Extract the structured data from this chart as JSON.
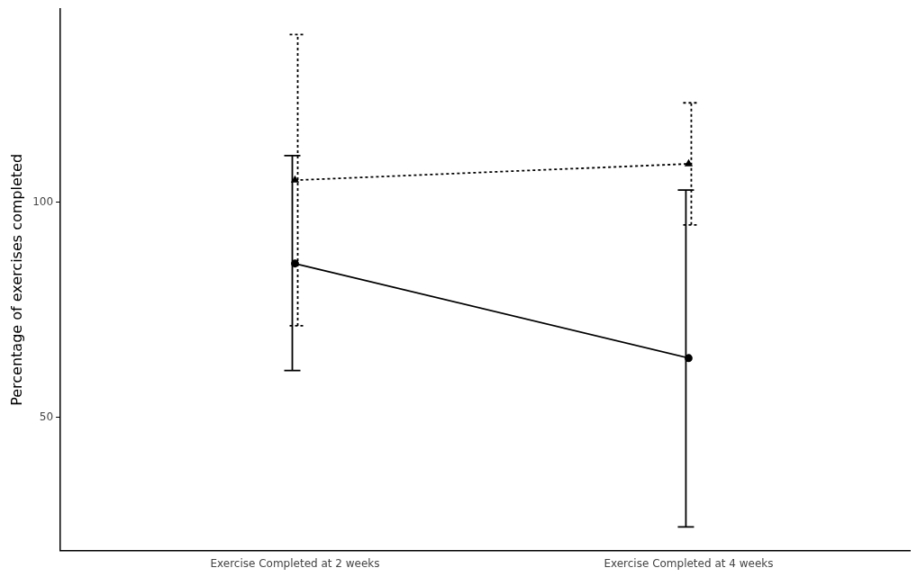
{
  "chart_data": {
    "type": "line",
    "ylabel": "Percentage of exercises completed",
    "categories": [
      "Exercise Completed at 2 weeks",
      "Exercise Completed at 4 weeks"
    ],
    "series": [
      {
        "color": "#000000",
        "values": [
          85.8,
          63.8
        ],
        "errors": [
          [
            60.9,
            110.9
          ],
          [
            24.5,
            102.9
          ]
        ],
        "marker": "circle",
        "line_style": "solid"
      },
      {
        "color": "#000000",
        "values": [
          105.2,
          109.0
        ],
        "errors": [
          [
            71.3,
            139.1
          ],
          [
            94.8,
            123.2
          ]
        ],
        "marker": "triangle",
        "line_style": "dotted"
      }
    ],
    "ylim": [
      19,
      145
    ],
    "yticks": [
      50,
      100
    ],
    "grid": false,
    "legend": false
  }
}
